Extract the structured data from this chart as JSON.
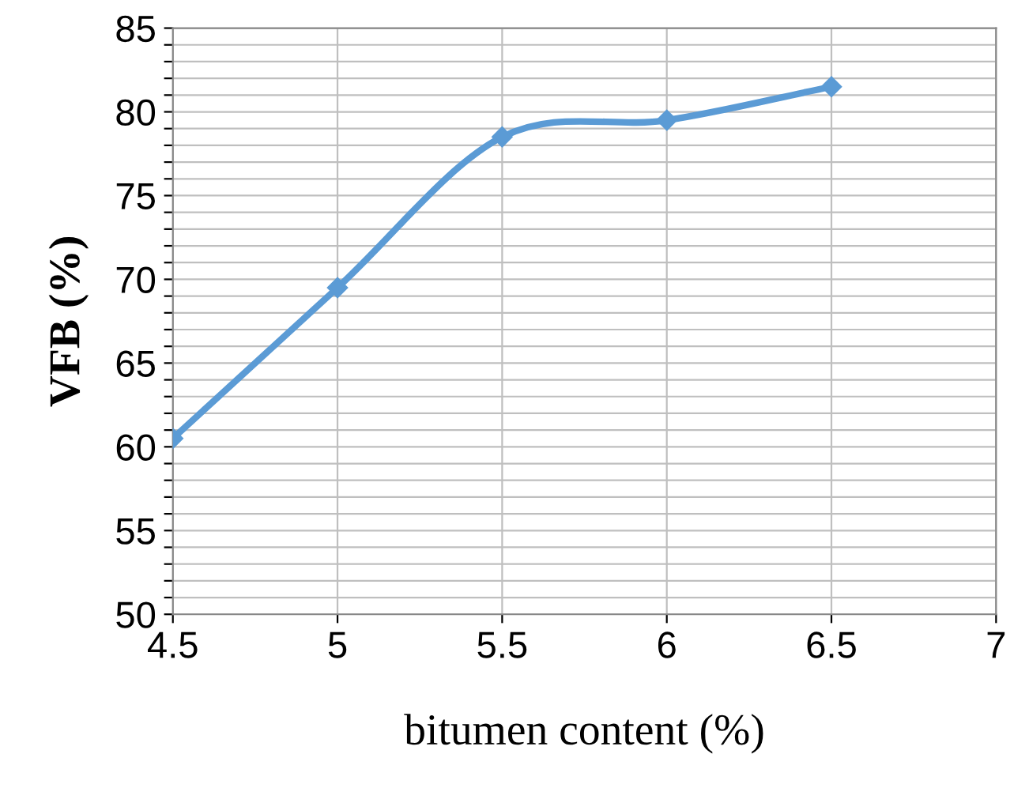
{
  "chart_data": {
    "type": "line",
    "xlabel": "bitumen content (%)",
    "ylabel": "VFB (%)",
    "x": [
      4.5,
      5,
      5.5,
      6,
      6.5
    ],
    "series": [
      {
        "color": "#5b9bd5",
        "values": [
          60.5,
          69.5,
          78.5,
          79.5,
          81.5
        ]
      }
    ],
    "xlim": [
      4.5,
      7
    ],
    "xticks": [
      4.5,
      5,
      5.5,
      6,
      6.5,
      7
    ],
    "ylim": [
      50,
      85
    ],
    "yticks": [
      50,
      {
        "value": 51,
        "label": null
      },
      {
        "value": 52,
        "label": null
      },
      {
        "value": 53,
        "label": null
      },
      {
        "value": 54,
        "label": null
      },
      55,
      {
        "value": 56,
        "label": null
      },
      {
        "value": 57,
        "label": null
      },
      {
        "value": 58,
        "label": null
      },
      {
        "value": 59,
        "label": null
      },
      60,
      {
        "value": 61,
        "label": null
      },
      {
        "value": 62,
        "label": null
      },
      {
        "value": 63,
        "label": null
      },
      {
        "value": 64,
        "label": null
      },
      65,
      {
        "value": 66,
        "label": null
      },
      {
        "value": 67,
        "label": null
      },
      {
        "value": 68,
        "label": null
      },
      {
        "value": 69,
        "label": null
      },
      70,
      {
        "value": 71,
        "label": null
      },
      {
        "value": 72,
        "label": null
      },
      {
        "value": 73,
        "label": null
      },
      {
        "value": 74,
        "label": null
      },
      75,
      {
        "value": 76,
        "label": null
      },
      {
        "value": 77,
        "label": null
      },
      {
        "value": 78,
        "label": null
      },
      {
        "value": 79,
        "label": null
      },
      80,
      {
        "value": 81,
        "label": null
      },
      {
        "value": 82,
        "label": null
      },
      {
        "value": 83,
        "label": null
      },
      {
        "value": 84,
        "label": null
      },
      85
    ],
    "grid": true,
    "marker": "diamond",
    "line_style": "solid"
  }
}
